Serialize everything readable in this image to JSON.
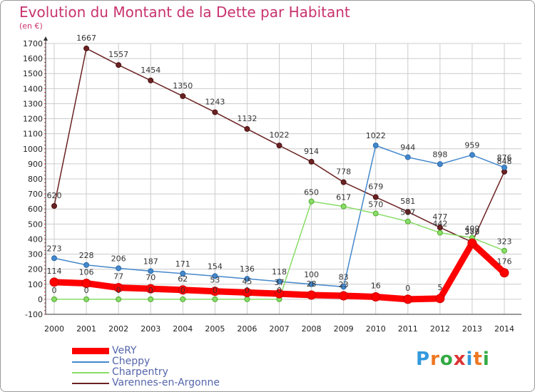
{
  "title": "Evolution du Montant de la Dette par Habitant",
  "unit": "(en €)",
  "logo": "Proxiti",
  "colors": {
    "VeRY": "#ff0000",
    "Cheppy": "#4488cc",
    "Charpentry": "#88dd66",
    "Varennes-en-Argonne": "#6b2222",
    "title": "#c8326e",
    "grid": "#cccccc"
  },
  "chart_data": {
    "type": "line",
    "title": "Evolution du Montant de la Dette par Habitant",
    "ylabel": "(en €)",
    "xlabel": "",
    "ylim": [
      -100,
      1700
    ],
    "yticks": [
      "-100",
      "0",
      "100",
      "200",
      "300",
      "400",
      "500",
      "600",
      "700",
      "800",
      "900",
      "1000",
      "1100",
      "1200",
      "1300",
      "1400",
      "1500",
      "1600",
      "1700"
    ],
    "categories": [
      "2000",
      "2001",
      "2002",
      "2003",
      "2004",
      "2005",
      "2006",
      "2007",
      "2008",
      "2009",
      "2010",
      "2011",
      "2012",
      "2013",
      "2014"
    ],
    "grid": true,
    "legend": "bottom-left",
    "series": [
      {
        "name": "Varennes-en-Argonne",
        "values": [
          620,
          1667,
          1557,
          1454,
          1350,
          1243,
          1132,
          1022,
          914,
          778,
          679,
          581,
          477,
          380,
          848
        ],
        "labels": [
          "620",
          "1667",
          "1557",
          "1454",
          "1350",
          "1243",
          "1132",
          "1022",
          "914",
          "778",
          "679",
          "581",
          "477",
          "380",
          "848"
        ]
      },
      {
        "name": "Cheppy",
        "values": [
          273,
          228,
          206,
          187,
          171,
          154,
          136,
          118,
          100,
          83,
          1022,
          944,
          898,
          959,
          876
        ],
        "labels": [
          "273",
          "228",
          "206",
          "187",
          "171",
          "154",
          "136",
          "118",
          "100",
          "83",
          "1022",
          "944",
          "898",
          "959",
          "876"
        ]
      },
      {
        "name": "Charpentry",
        "values": [
          0,
          0,
          0,
          0,
          0,
          0,
          0,
          0,
          650,
          617,
          570,
          517,
          442,
          409,
          323
        ],
        "labels": [
          "0",
          "0",
          "0",
          "0",
          "0",
          "0",
          "0",
          "0",
          "650",
          "617",
          "570",
          "517",
          "442",
          "409",
          "323"
        ]
      },
      {
        "name": "VeRY",
        "values": [
          114,
          106,
          77,
          70,
          62,
          53,
          45,
          37,
          28,
          23,
          16,
          0,
          5,
          373,
          176
        ],
        "labels": [
          "114",
          "106",
          "77",
          "70",
          "62",
          "53",
          "45",
          "37",
          "28",
          "23",
          "16",
          "0",
          "5",
          "373",
          "176"
        ]
      }
    ]
  },
  "legend_items": [
    "VeRY",
    "Cheppy",
    "Charpentry",
    "Varennes-en-Argonne"
  ]
}
